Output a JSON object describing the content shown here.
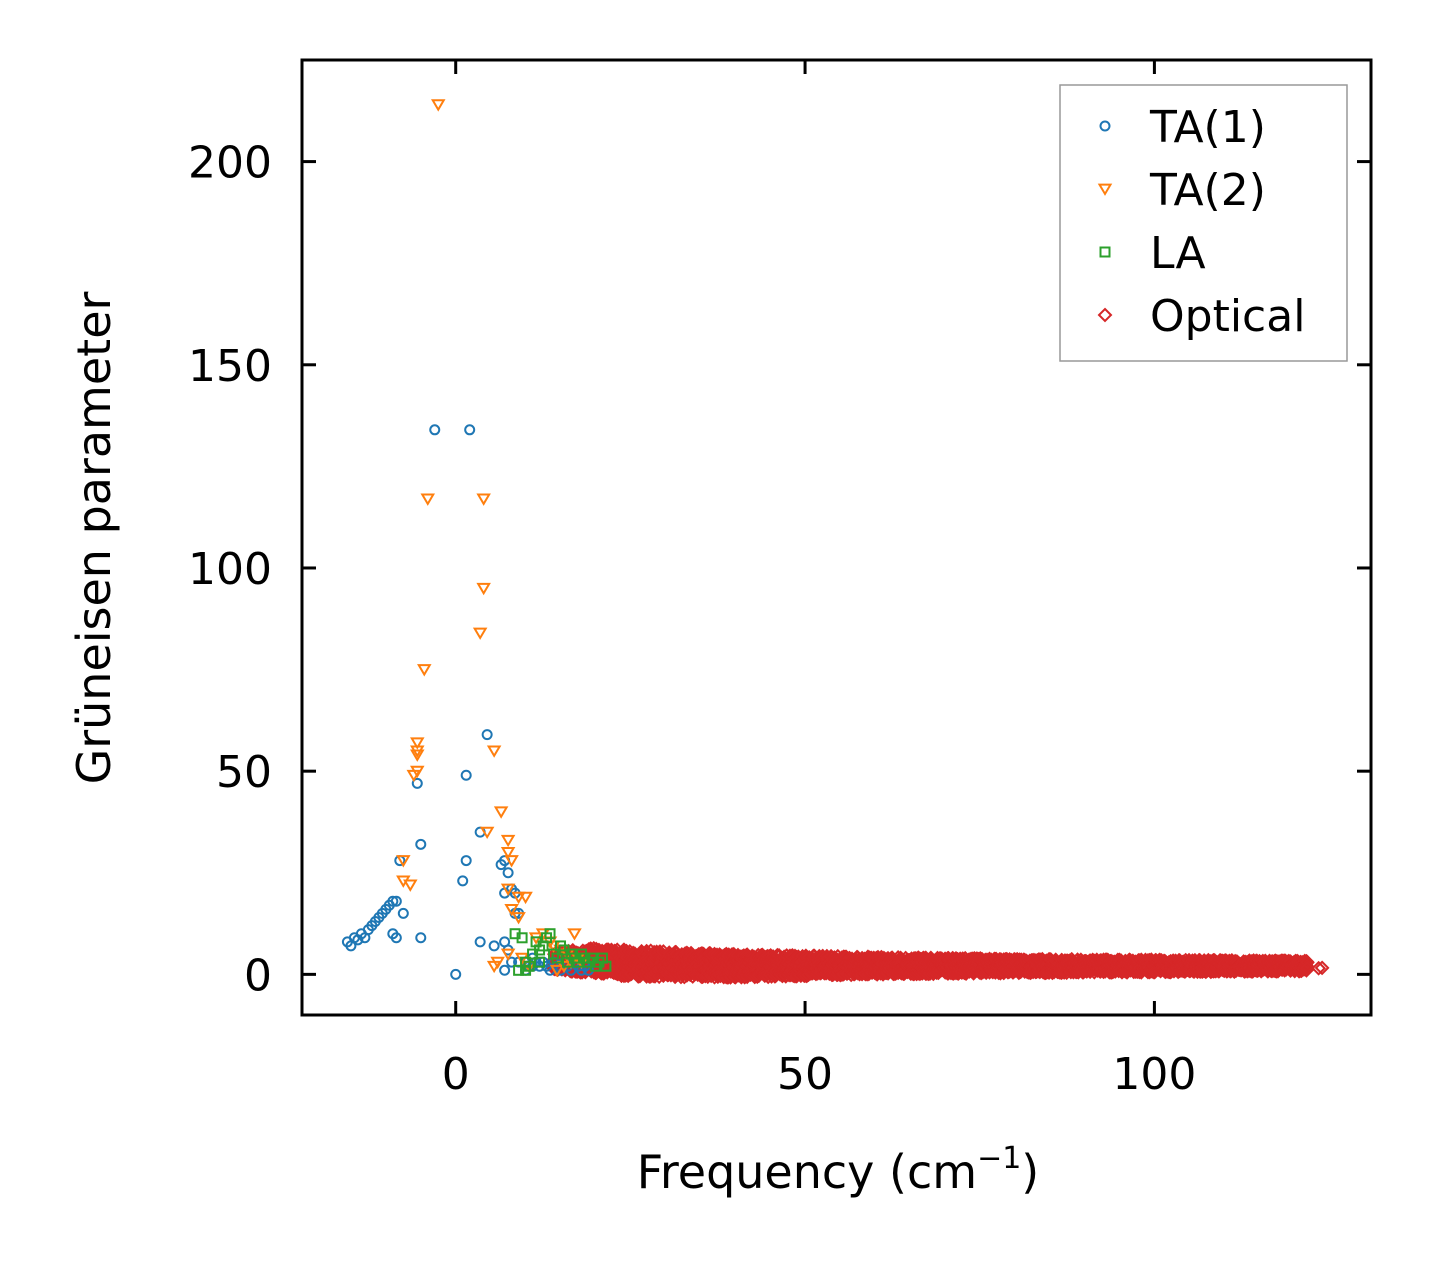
{
  "chart_data": {
    "type": "scatter",
    "title": "",
    "xlabel": "Frequency (cm",
    "xlabel_superscript": "−1",
    "xlabel_suffix": ")",
    "ylabel": "Grüneisen parameter",
    "xlim": [
      -22,
      131
    ],
    "ylim": [
      -10,
      225
    ],
    "xticks": [
      0,
      50,
      100
    ],
    "xtick_labels": [
      "0",
      "50",
      "100"
    ],
    "yticks": [
      0,
      50,
      100,
      150,
      200
    ],
    "ytick_labels": [
      "0",
      "50",
      "100",
      "150",
      "200"
    ],
    "grid": false,
    "legend_position": "top-right",
    "series": [
      {
        "name": "TA(1)",
        "marker": "circle",
        "color": "#1f77b4",
        "points": [
          [
            -15.5,
            8
          ],
          [
            -15,
            7
          ],
          [
            -14.5,
            9
          ],
          [
            -14,
            8.5
          ],
          [
            -13.5,
            10
          ],
          [
            -13,
            9
          ],
          [
            -12.5,
            11
          ],
          [
            -12,
            12
          ],
          [
            -11.5,
            13
          ],
          [
            -11,
            14
          ],
          [
            -10.5,
            15
          ],
          [
            -10,
            16
          ],
          [
            -9.5,
            17
          ],
          [
            -9,
            18
          ],
          [
            -8.5,
            18
          ],
          [
            -9,
            10
          ],
          [
            -8.5,
            9
          ],
          [
            -8,
            28
          ],
          [
            -7.5,
            15
          ],
          [
            -5.5,
            47
          ],
          [
            -5,
            32
          ],
          [
            -5,
            9
          ],
          [
            -3,
            134
          ],
          [
            2,
            134
          ],
          [
            1.5,
            49
          ],
          [
            1.5,
            28
          ],
          [
            1,
            23
          ],
          [
            0,
            0
          ],
          [
            4.5,
            59
          ],
          [
            3.5,
            35
          ],
          [
            3.5,
            8
          ],
          [
            5.5,
            7
          ],
          [
            6.5,
            27
          ],
          [
            7,
            28
          ],
          [
            7.5,
            25
          ],
          [
            7,
            20
          ],
          [
            8,
            21
          ],
          [
            8.5,
            20
          ],
          [
            8.5,
            15
          ],
          [
            9,
            15
          ],
          [
            7,
            8
          ],
          [
            7.5,
            6
          ],
          [
            8,
            3
          ],
          [
            9,
            3
          ],
          [
            7,
            1
          ],
          [
            10,
            3
          ],
          [
            10.5,
            2
          ],
          [
            11,
            4
          ],
          [
            11.5,
            3
          ],
          [
            12,
            2
          ],
          [
            12.5,
            3
          ],
          [
            13,
            2
          ],
          [
            13.5,
            1
          ],
          [
            14,
            3
          ],
          [
            14.5,
            2
          ],
          [
            15,
            1
          ],
          [
            15.5,
            3
          ],
          [
            16,
            2
          ],
          [
            16.5,
            1
          ],
          [
            17,
            3
          ],
          [
            17.5,
            2
          ],
          [
            18,
            1
          ],
          [
            18.5,
            2
          ],
          [
            19,
            1
          ],
          [
            10,
            1
          ],
          [
            11,
            2
          ]
        ]
      },
      {
        "name": "TA(2)",
        "marker": "triangle-down",
        "color": "#ff7f0e",
        "points": [
          [
            -2.5,
            214
          ],
          [
            -4,
            117
          ],
          [
            4,
            117
          ],
          [
            4,
            95
          ],
          [
            3.5,
            84
          ],
          [
            -4.5,
            75
          ],
          [
            -5.5,
            57
          ],
          [
            -5.5,
            55
          ],
          [
            -5.5,
            54
          ],
          [
            -5.5,
            50
          ],
          [
            -6,
            49
          ],
          [
            5.5,
            55
          ],
          [
            6.5,
            40
          ],
          [
            4.5,
            35
          ],
          [
            7.5,
            33
          ],
          [
            7.5,
            30
          ],
          [
            8,
            28
          ],
          [
            -7.5,
            28
          ],
          [
            -7.5,
            23
          ],
          [
            -6.5,
            22
          ],
          [
            7.5,
            21
          ],
          [
            9,
            19
          ],
          [
            10,
            19
          ],
          [
            8,
            16
          ],
          [
            9,
            14
          ],
          [
            7.5,
            5
          ],
          [
            9.5,
            4
          ],
          [
            10.5,
            2
          ],
          [
            11.5,
            9
          ],
          [
            12.5,
            10
          ],
          [
            13.5,
            8
          ],
          [
            14,
            7
          ],
          [
            15,
            6
          ],
          [
            16,
            5
          ],
          [
            17,
            10
          ],
          [
            17.5,
            4
          ],
          [
            18,
            3
          ],
          [
            15.5,
            2
          ],
          [
            16.5,
            3
          ],
          [
            5.5,
            2
          ],
          [
            6,
            3
          ],
          [
            14.5,
            1
          ]
        ]
      },
      {
        "name": "LA",
        "marker": "square",
        "color": "#2ca02c",
        "points": [
          [
            8.5,
            10
          ],
          [
            9.5,
            9
          ],
          [
            10,
            3
          ],
          [
            10.5,
            2
          ],
          [
            11,
            5
          ],
          [
            11.5,
            8
          ],
          [
            12,
            6
          ],
          [
            12.5,
            7
          ],
          [
            13,
            9
          ],
          [
            13.5,
            10
          ],
          [
            14,
            5
          ],
          [
            14.5,
            4
          ],
          [
            15,
            7
          ],
          [
            15.5,
            6
          ],
          [
            16,
            3
          ],
          [
            16.5,
            5
          ],
          [
            17,
            4
          ],
          [
            17.5,
            3
          ],
          [
            18,
            5
          ],
          [
            18.5,
            4
          ],
          [
            19,
            3
          ],
          [
            19.5,
            4
          ],
          [
            20,
            2
          ],
          [
            20.5,
            3
          ],
          [
            21,
            4
          ],
          [
            21.5,
            2
          ],
          [
            9,
            1
          ],
          [
            10,
            1
          ],
          [
            12,
            3
          ]
        ]
      },
      {
        "name": "Optical",
        "marker": "diamond",
        "color": "#d62728",
        "range": {
          "x_start": 14,
          "x_end": 122,
          "band_top": [
            [
              14,
              5.5
            ],
            [
              20,
              6.5
            ],
            [
              25,
              6
            ],
            [
              40,
              5
            ],
            [
              60,
              4.3
            ],
            [
              80,
              3.8
            ],
            [
              100,
              3.6
            ],
            [
              122,
              3.3
            ]
          ],
          "band_bottom": [
            [
              14,
              1
            ],
            [
              20,
              0.2
            ],
            [
              25,
              -0.5
            ],
            [
              40,
              -0.8
            ],
            [
              60,
              0
            ],
            [
              80,
              0.3
            ],
            [
              100,
              0.5
            ],
            [
              122,
              0.8
            ]
          ]
        },
        "extra_points": [
          [
            123.5,
            1.5
          ],
          [
            124,
            1.6
          ],
          [
            20.5,
            6
          ]
        ]
      }
    ]
  }
}
